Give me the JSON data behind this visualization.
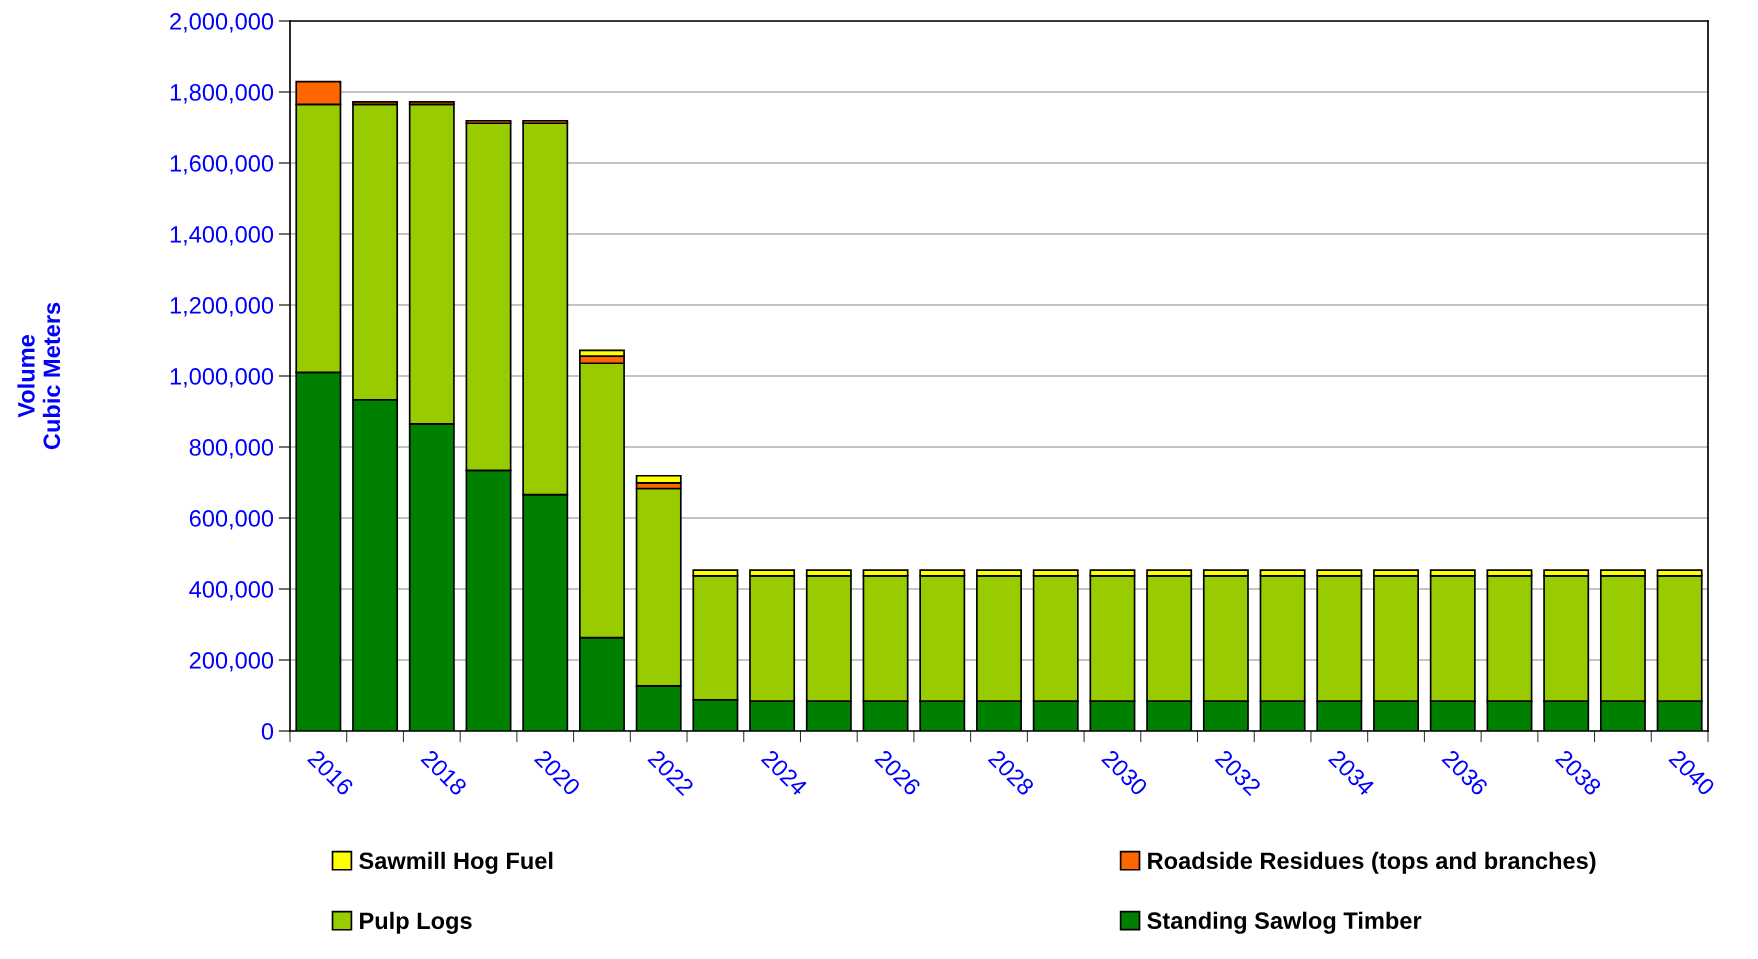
{
  "chart_data": {
    "type": "bar",
    "stacked": true,
    "ylabel": "Volume\nCubic Meters",
    "categories": [
      "2016",
      null,
      "2018",
      null,
      "2020",
      null,
      "2022",
      null,
      "2024",
      null,
      "2026",
      null,
      "2028",
      null,
      "2030",
      null,
      "2032",
      null,
      "2034",
      null,
      "2036",
      null,
      "2038",
      null,
      "2040"
    ],
    "series": [
      {
        "name": "Standing Sawlog Timber",
        "color": "#008000",
        "values": [
          1010000,
          933000,
          865000,
          734000,
          666000,
          263000,
          127000,
          88000,
          84000,
          84000,
          84000,
          84000,
          84000,
          84000,
          84000,
          84000,
          84000,
          84000,
          84000,
          84000,
          84000,
          84000,
          84000,
          84000,
          84000
        ]
      },
      {
        "name": "Pulp Logs",
        "color": "#99cc00",
        "values": [
          755000,
          832000,
          900000,
          978000,
          1046000,
          773000,
          556000,
          349000,
          353000,
          353000,
          353000,
          353000,
          353000,
          353000,
          353000,
          353000,
          353000,
          353000,
          353000,
          353000,
          353000,
          353000,
          353000,
          353000,
          353000
        ]
      },
      {
        "name": "Roadside Residues (tops and branches)",
        "color": "#ff6600",
        "values": [
          64000,
          7000,
          7000,
          7000,
          7000,
          20000,
          16000,
          0,
          0,
          0,
          0,
          0,
          0,
          0,
          0,
          0,
          0,
          0,
          0,
          0,
          0,
          0,
          0,
          0,
          0
        ]
      },
      {
        "name": "Sawmill Hog Fuel",
        "color": "#ffff00",
        "values": [
          0,
          0,
          0,
          0,
          0,
          16000,
          20000,
          16000,
          16000,
          16000,
          16000,
          16000,
          16000,
          16000,
          16000,
          16000,
          16000,
          16000,
          16000,
          16000,
          16000,
          16000,
          16000,
          16000,
          16000
        ]
      }
    ],
    "ylim": [
      0,
      2000000
    ],
    "yticks": [
      {
        "value": 0,
        "label": "0"
      },
      {
        "value": 200000,
        "label": "200,000"
      },
      {
        "value": 400000,
        "label": "400,000"
      },
      {
        "value": 600000,
        "label": "600,000"
      },
      {
        "value": 800000,
        "label": "800,000"
      },
      {
        "value": 1000000,
        "label": "1,000,000"
      },
      {
        "value": 1200000,
        "label": "1,200,000"
      },
      {
        "value": 1400000,
        "label": "1,400,000"
      },
      {
        "value": 1600000,
        "label": "1,600,000"
      },
      {
        "value": 1800000,
        "label": "1,800,000"
      },
      {
        "value": 2000000,
        "label": "2,000,000"
      }
    ],
    "grid": "y",
    "legend": "bottom"
  }
}
